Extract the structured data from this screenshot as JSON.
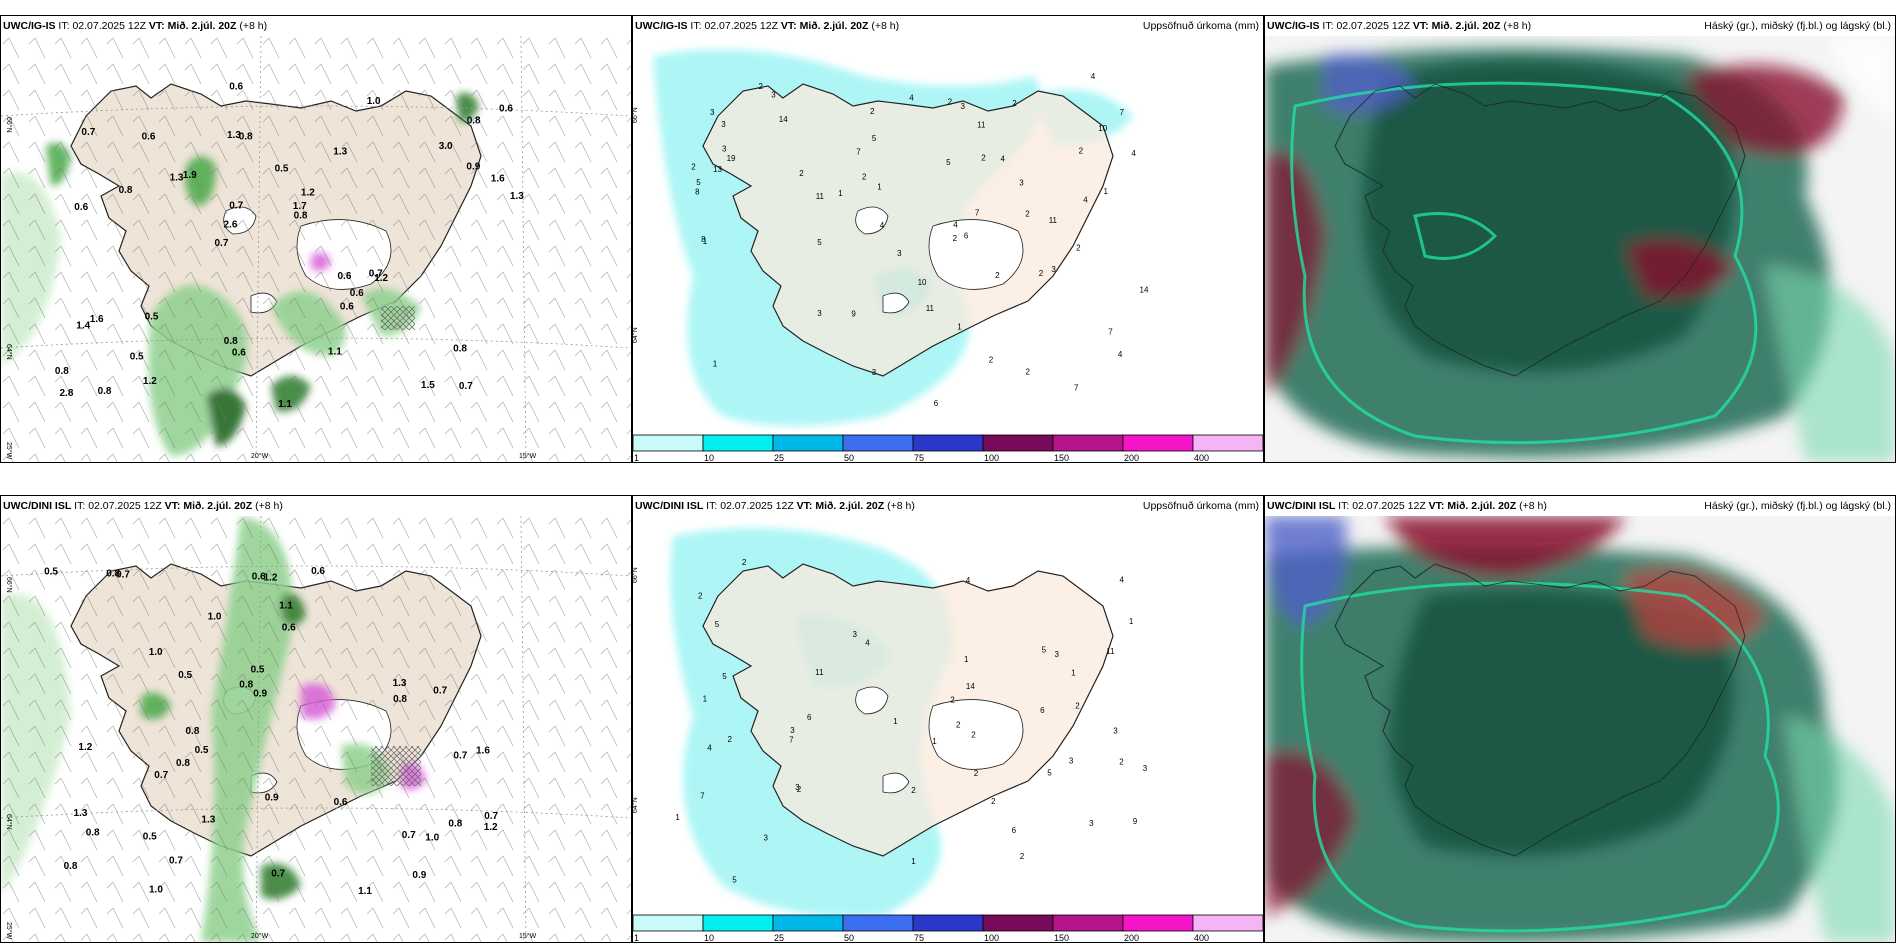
{
  "rows": [
    {
      "model": "UWC/IG-IS",
      "it_label": "IT:",
      "it_value": "02.07.2025 12Z",
      "vt_label": "VT:",
      "vt_value": "Mið. 2.júl. 20Z",
      "lead": "(+8 h)"
    },
    {
      "model": "UWC/DINI ISL",
      "it_label": "IT:",
      "it_value": "02.07.2025 12Z",
      "vt_label": "VT:",
      "vt_value": "Mið. 2.júl. 20Z",
      "lead": "(+8 h)"
    }
  ],
  "precip_title": "Uppsöfnuð úrkoma (mm)",
  "cloud_title": "Háský (gr.), miðský (fj.bl.) og lágský (bl.)",
  "precip_scale": {
    "labels": [
      "1",
      "10",
      "25",
      "50",
      "75",
      "100",
      "150",
      "200",
      "400"
    ],
    "colors": [
      "#c9fbfb",
      "#00f0f0",
      "#00b8e8",
      "#3c6ef0",
      "#2838c8",
      "#780a5a",
      "#b4148c",
      "#f514c8",
      "#f5b4f5"
    ]
  },
  "axis_labels": {
    "lat_66": "66°N",
    "lat_64": "64°N",
    "lon_25": "25°W",
    "lon_20": "20°W",
    "lon_15": "15°W"
  },
  "panel_values": {
    "r1_p1": [
      "0.7",
      "0.6",
      "0.8",
      "0.7",
      "1.3",
      "0.8",
      "1.3",
      "0.5",
      "1.6",
      "1.9",
      "0.8",
      "0.5",
      "0.8",
      "1.2",
      "1.2",
      "0.7",
      "0.6",
      "1.3",
      "0.6",
      "0.9",
      "2.6",
      "0.8",
      "0.7",
      "0.6",
      "1.0",
      "0.5",
      "1.5",
      "0.8",
      "0.7",
      "1.1",
      "1.3",
      "0.8",
      "0.6",
      "1.2",
      "1.6",
      "1.7",
      "2.8",
      "0.6",
      "0.8",
      "1.4",
      "3.0",
      "0.6",
      "0.6",
      "1.1"
    ],
    "r1_p2": [
      "1",
      "2",
      "3",
      "3",
      "2",
      "1",
      "1",
      "2",
      "2",
      "4",
      "5",
      "3",
      "2",
      "2",
      "1",
      "2",
      "5",
      "4",
      "2",
      "4",
      "2",
      "3",
      "11",
      "2",
      "3",
      "5",
      "11",
      "2",
      "8",
      "3",
      "7",
      "3",
      "7",
      "7",
      "2",
      "7",
      "5",
      "4",
      "10",
      "13",
      "14",
      "8",
      "10",
      "11",
      "2",
      "4",
      "3",
      "11",
      "4",
      "2",
      "1",
      "3",
      "6",
      "3",
      "4",
      "7",
      "6",
      "14",
      "19",
      "2",
      "1",
      "9",
      "2",
      "4"
    ],
    "r2_p1": [
      "0.7",
      "0.7",
      "0.8",
      "0.7",
      "0.7",
      "0.5",
      "0.8",
      "0.8",
      "0.6",
      "0.9",
      "1.3",
      "1.0",
      "1.2",
      "1.0",
      "0.7",
      "0.9",
      "0.5",
      "1.3",
      "1.6",
      "0.8",
      "0.5",
      "0.7",
      "1.1",
      "1.0",
      "0.6",
      "1.2",
      "0.9",
      "0.5",
      "0.8",
      "1.3",
      "1.1",
      "0.6",
      "0.5",
      "0.7",
      "1.0",
      "0.8",
      "0.6",
      "1.2",
      "0.7",
      "0.8",
      "0.8"
    ],
    "r2_p2": [
      "1",
      "2",
      "1",
      "2",
      "1",
      "2",
      "2",
      "1",
      "3",
      "1",
      "5",
      "3",
      "4",
      "4",
      "3",
      "2",
      "1",
      "14",
      "4",
      "9",
      "5",
      "7",
      "3",
      "2",
      "11",
      "11",
      "6",
      "3",
      "5",
      "3",
      "4",
      "2",
      "1",
      "5",
      "2",
      "2",
      "3",
      "2",
      "2",
      "5",
      "6",
      "3",
      "7",
      "6",
      "1",
      "2",
      "2",
      "3"
    ]
  }
}
